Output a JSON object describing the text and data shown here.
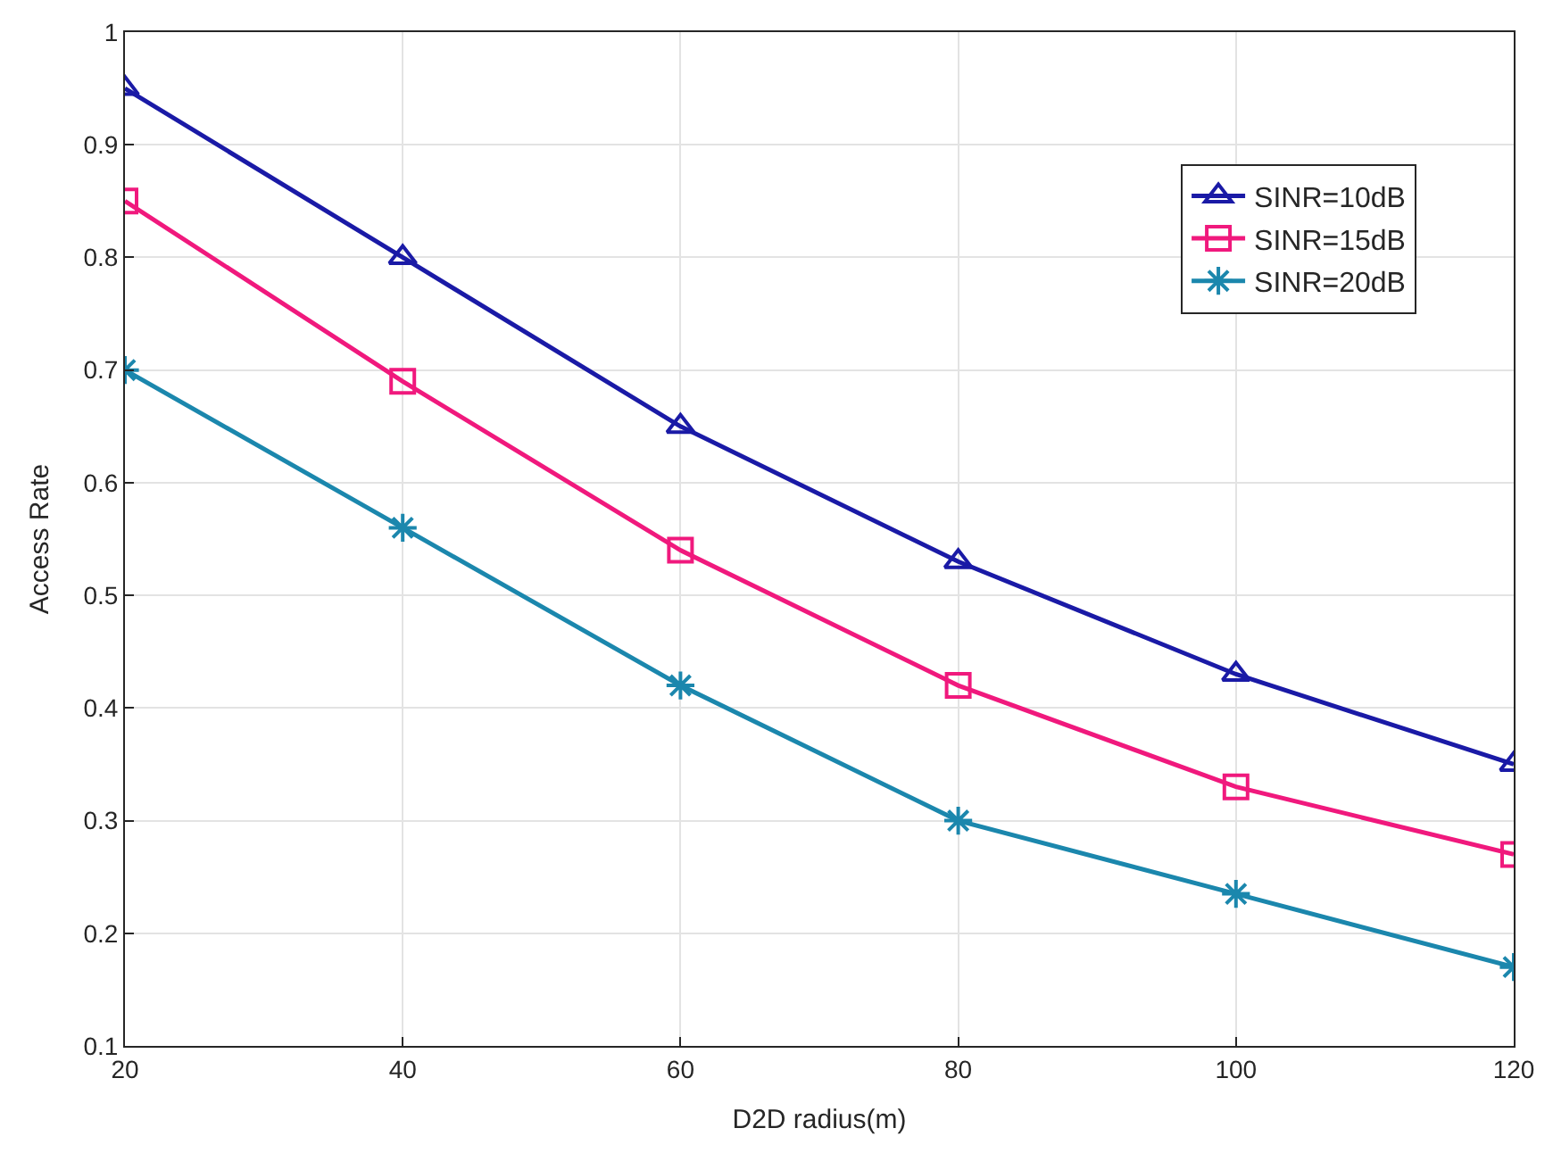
{
  "chart_data": {
    "type": "line",
    "xlabel": "D2D radius(m)",
    "ylabel": "Access Rate",
    "x": [
      20,
      40,
      60,
      80,
      100,
      120
    ],
    "series": [
      {
        "name": "SINR=10dB",
        "color": "#1a1aa6",
        "marker": "triangle",
        "values": [
          0.95,
          0.8,
          0.65,
          0.53,
          0.43,
          0.35
        ]
      },
      {
        "name": "SINR=15dB",
        "color": "#f0197d",
        "marker": "square",
        "values": [
          0.85,
          0.69,
          0.54,
          0.42,
          0.33,
          0.27
        ]
      },
      {
        "name": "SINR=20dB",
        "color": "#1b87ad",
        "marker": "cross",
        "values": [
          0.7,
          0.56,
          0.42,
          0.3,
          0.235,
          0.17
        ]
      }
    ],
    "xlim": [
      20,
      120
    ],
    "xticks": [
      20,
      40,
      60,
      80,
      100,
      120
    ],
    "ylim": [
      0.1,
      1
    ],
    "yticks": [
      0.1,
      0.2,
      0.3,
      0.4,
      0.5,
      0.6,
      0.7,
      0.8,
      0.9,
      1
    ],
    "grid": true,
    "legend": "top right",
    "line_style": "solid"
  }
}
